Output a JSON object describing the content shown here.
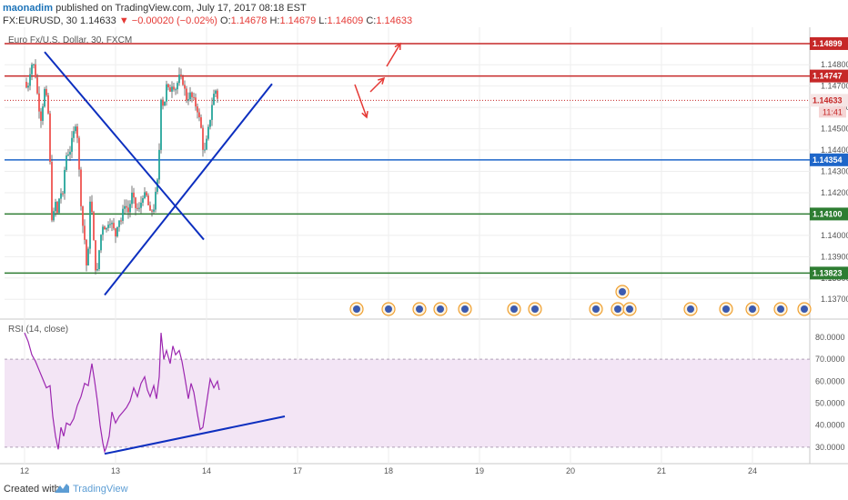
{
  "header": {
    "username": "maonadim",
    "published_text": "published on TradingView.com, July 17, 2017 08:18 EST",
    "symbol": "FX:EURUSD, 30",
    "last": "1.14633",
    "change": "−0.00020 (−0.02%)",
    "o_label": "O:",
    "o": "1.14678",
    "h_label": "H:",
    "h": "1.14679",
    "l_label": "L:",
    "l": "1.14609",
    "c_label": "C:",
    "c": "1.14633"
  },
  "footer": {
    "created_with": "Created with",
    "brand": "TradingView"
  },
  "colors": {
    "up": "#26a69a",
    "down": "#ef5350",
    "rsi_line": "#9c27b0",
    "rsi_band": "#f3e5f5",
    "trend": "#0d2fbf",
    "red_level": "#c62828",
    "blue_level": "#1e66c9",
    "green_level": "#2e7d32"
  },
  "chart_data": [
    {
      "type": "candlestick",
      "title": "Euro Fx/U.S. Dollar, 30, FXCM",
      "ylim": [
        1.1362,
        1.1495
      ],
      "x_tick_labels": [
        "12",
        "13",
        "14",
        "17",
        "18",
        "19",
        "20",
        "21",
        "24"
      ],
      "y_tick_labels": [
        "1.14800",
        "1.14700",
        "1.14600",
        "1.14500",
        "1.14400",
        "1.14300",
        "1.14200",
        "1.14000",
        "1.13900",
        "1.13800",
        "1.13700"
      ],
      "horizontal_levels": [
        {
          "value": 1.14899,
          "label": "1.14899",
          "color": "red"
        },
        {
          "value": 1.14747,
          "label": "1.14747",
          "color": "red"
        },
        {
          "value": 1.14633,
          "label": "1.14633",
          "color": "red-dotted"
        },
        {
          "value": 1.14354,
          "label": "1.14354",
          "color": "blue"
        },
        {
          "value": 1.141,
          "label": "1.14100",
          "color": "green"
        },
        {
          "value": 1.13823,
          "label": "1.13823",
          "color": "green"
        }
      ],
      "countdown_label": "11:41",
      "price_path": [
        [
          0,
          1.1472
        ],
        [
          0.03,
          1.1468
        ],
        [
          0.06,
          1.1477
        ],
        [
          0.09,
          1.1482
        ],
        [
          0.12,
          1.1475
        ],
        [
          0.15,
          1.1462
        ],
        [
          0.18,
          1.1455
        ],
        [
          0.22,
          1.1468
        ],
        [
          0.25,
          1.1462
        ],
        [
          0.27,
          1.1452
        ],
        [
          0.29,
          1.1415
        ],
        [
          0.31,
          1.1402
        ],
        [
          0.33,
          1.1418
        ],
        [
          0.36,
          1.141
        ],
        [
          0.39,
          1.1421
        ],
        [
          0.42,
          1.1418
        ],
        [
          0.45,
          1.1437
        ],
        [
          0.5,
          1.144
        ],
        [
          0.54,
          1.1448
        ],
        [
          0.57,
          1.1455
        ],
        [
          0.6,
          1.143
        ],
        [
          0.63,
          1.1408
        ],
        [
          0.66,
          1.1398
        ],
        [
          0.69,
          1.138
        ],
        [
          0.72,
          1.1417
        ],
        [
          0.75,
          1.1407
        ],
        [
          0.77,
          1.1386
        ],
        [
          0.8,
          1.1383
        ],
        [
          0.83,
          1.1398
        ],
        [
          0.86,
          1.1405
        ],
        [
          0.9,
          1.1403
        ],
        [
          0.93,
          1.1408
        ],
        [
          0.96,
          1.1405
        ],
        [
          1.0,
          1.14
        ],
        [
          1.03,
          1.1408
        ],
        [
          1.06,
          1.1407
        ],
        [
          1.1,
          1.1415
        ],
        [
          1.14,
          1.1411
        ],
        [
          1.18,
          1.1419
        ],
        [
          1.22,
          1.1413
        ],
        [
          1.26,
          1.1412
        ],
        [
          1.3,
          1.1419
        ],
        [
          1.34,
          1.1418
        ],
        [
          1.38,
          1.141
        ],
        [
          1.42,
          1.1413
        ],
        [
          1.47,
          1.1428
        ],
        [
          1.5,
          1.1465
        ],
        [
          1.53,
          1.146
        ],
        [
          1.56,
          1.147
        ],
        [
          1.59,
          1.1467
        ],
        [
          1.62,
          1.1471
        ],
        [
          1.66,
          1.1469
        ],
        [
          1.7,
          1.1474
        ],
        [
          1.74,
          1.1472
        ],
        [
          1.78,
          1.1464
        ],
        [
          1.82,
          1.1466
        ],
        [
          1.86,
          1.1463
        ],
        [
          1.9,
          1.1459
        ],
        [
          1.94,
          1.145
        ],
        [
          1.97,
          1.1437
        ],
        [
          2.0,
          1.1444
        ],
        [
          2.04,
          1.1455
        ],
        [
          2.07,
          1.1465
        ],
        [
          2.1,
          1.1468
        ],
        [
          2.13,
          1.1463
        ]
      ],
      "annotations": {
        "trendlines": [
          {
            "from": [
              0.22,
              1.1486
            ],
            "to": [
              1.97,
              1.1398
            ]
          },
          {
            "from": [
              0.88,
              1.1372
            ],
            "to": [
              2.72,
              1.1471
            ]
          }
        ],
        "arrows": [
          "up-right",
          "up-right",
          "down-right"
        ]
      }
    },
    {
      "type": "line",
      "title": "RSI (14, close)",
      "ylim": [
        25,
        87
      ],
      "y_tick_labels": [
        "80.0000",
        "70.0000",
        "60.0000",
        "50.0000",
        "40.0000",
        "30.0000"
      ],
      "band": [
        30,
        70
      ],
      "series": [
        {
          "values": [
            [
              0,
              82
            ],
            [
              0.04,
              78
            ],
            [
              0.08,
              72
            ],
            [
              0.12,
              69
            ],
            [
              0.16,
              65
            ],
            [
              0.2,
              61
            ],
            [
              0.24,
              57
            ],
            [
              0.28,
              58
            ],
            [
              0.31,
              44
            ],
            [
              0.34,
              35
            ],
            [
              0.37,
              29
            ],
            [
              0.4,
              39
            ],
            [
              0.43,
              35
            ],
            [
              0.46,
              41
            ],
            [
              0.5,
              40
            ],
            [
              0.54,
              43
            ],
            [
              0.58,
              49
            ],
            [
              0.62,
              53
            ],
            [
              0.66,
              59
            ],
            [
              0.7,
              58
            ],
            [
              0.74,
              68
            ],
            [
              0.77,
              60
            ],
            [
              0.8,
              51
            ],
            [
              0.83,
              40
            ],
            [
              0.86,
              32
            ],
            [
              0.88,
              28
            ],
            [
              0.9,
              30
            ],
            [
              0.93,
              35
            ],
            [
              0.96,
              46
            ],
            [
              1.0,
              41
            ],
            [
              1.04,
              44
            ],
            [
              1.08,
              46
            ],
            [
              1.12,
              48
            ],
            [
              1.16,
              51
            ],
            [
              1.2,
              57
            ],
            [
              1.24,
              53
            ],
            [
              1.28,
              59
            ],
            [
              1.32,
              62
            ],
            [
              1.35,
              56
            ],
            [
              1.38,
              53
            ],
            [
              1.42,
              58
            ],
            [
              1.45,
              52
            ],
            [
              1.48,
              62
            ],
            [
              1.5,
              82
            ],
            [
              1.53,
              70
            ],
            [
              1.56,
              74
            ],
            [
              1.6,
              68
            ],
            [
              1.63,
              76
            ],
            [
              1.66,
              72
            ],
            [
              1.7,
              74
            ],
            [
              1.73,
              69
            ],
            [
              1.76,
              62
            ],
            [
              1.8,
              52
            ],
            [
              1.83,
              59
            ],
            [
              1.86,
              55
            ],
            [
              1.9,
              45
            ],
            [
              1.93,
              38
            ],
            [
              1.96,
              39
            ],
            [
              2.0,
              50
            ],
            [
              2.04,
              61
            ],
            [
              2.08,
              57
            ],
            [
              2.12,
              60
            ],
            [
              2.14,
              56
            ]
          ]
        }
      ],
      "annotations": {
        "trendlines": [
          {
            "from": [
              0.88,
              27
            ],
            "to": [
              2.86,
              44
            ]
          }
        ]
      }
    }
  ]
}
